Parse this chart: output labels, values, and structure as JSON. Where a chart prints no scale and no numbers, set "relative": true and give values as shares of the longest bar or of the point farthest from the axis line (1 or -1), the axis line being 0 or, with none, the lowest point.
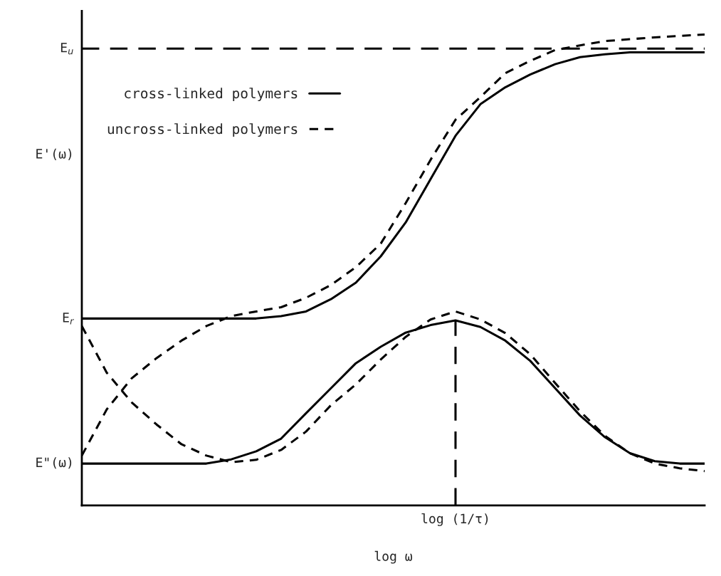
{
  "chart_data": {
    "type": "line",
    "relative": true,
    "xlabel": "log ω",
    "categories": [
      null,
      null,
      null,
      null,
      null,
      null,
      null,
      null,
      null,
      null,
      null,
      null,
      null,
      null,
      null,
      null,
      null,
      null,
      null,
      null,
      null,
      null,
      null,
      null,
      null,
      null
    ],
    "series": [
      {
        "name": "cross-linked polymers",
        "color": "#000000",
        "line_style": "solid",
        "values": [
          0.397,
          0.397,
          0.397,
          0.397,
          0.397,
          0.397,
          0.397,
          0.397,
          0.402,
          0.412,
          0.438,
          0.473,
          0.529,
          0.601,
          0.693,
          0.785,
          0.852,
          0.888,
          0.915,
          0.937,
          0.952,
          0.958,
          0.962,
          0.962,
          0.962,
          0.962
        ]
      },
      {
        "name": "uncross-linked polymers",
        "color": "#000000",
        "line_style": "dashed",
        "values": [
          0.106,
          0.204,
          0.27,
          0.313,
          0.35,
          0.381,
          0.402,
          0.412,
          0.421,
          0.441,
          0.468,
          0.506,
          0.556,
          0.642,
          0.734,
          0.819,
          0.867,
          0.918,
          0.944,
          0.967,
          0.977,
          0.986,
          0.99,
          0.994,
          0.997,
          1.0
        ]
      },
      {
        "color": "#000000",
        "line_style": "solid",
        "values": [
          0.089,
          0.089,
          0.089,
          0.089,
          0.089,
          0.089,
          0.098,
          0.115,
          0.142,
          0.196,
          0.249,
          0.302,
          0.337,
          0.367,
          0.383,
          0.393,
          0.379,
          0.35,
          0.307,
          0.249,
          0.191,
          0.145,
          0.111,
          0.094,
          0.089,
          0.089
        ]
      },
      {
        "color": "#000000",
        "line_style": "dashed",
        "values": [
          0.381,
          0.282,
          0.219,
          0.172,
          0.13,
          0.106,
          0.092,
          0.097,
          0.118,
          0.157,
          0.213,
          0.257,
          0.31,
          0.358,
          0.395,
          0.412,
          0.395,
          0.366,
          0.321,
          0.26,
          0.2,
          0.148,
          0.111,
          0.089,
          0.079,
          0.073
        ]
      }
    ],
    "ref_lines": [
      {
        "axis": "y",
        "value": 0.97,
        "label": "E$_{u}$",
        "line_style": "dashed",
        "color": "#000000"
      }
    ],
    "annotations": [
      "log (1/τ)",
      "E'(ω)",
      "E$_{r}$",
      "E\"(ω)"
    ],
    "legend": "top left",
    "grid": false,
    "marker": "none"
  }
}
